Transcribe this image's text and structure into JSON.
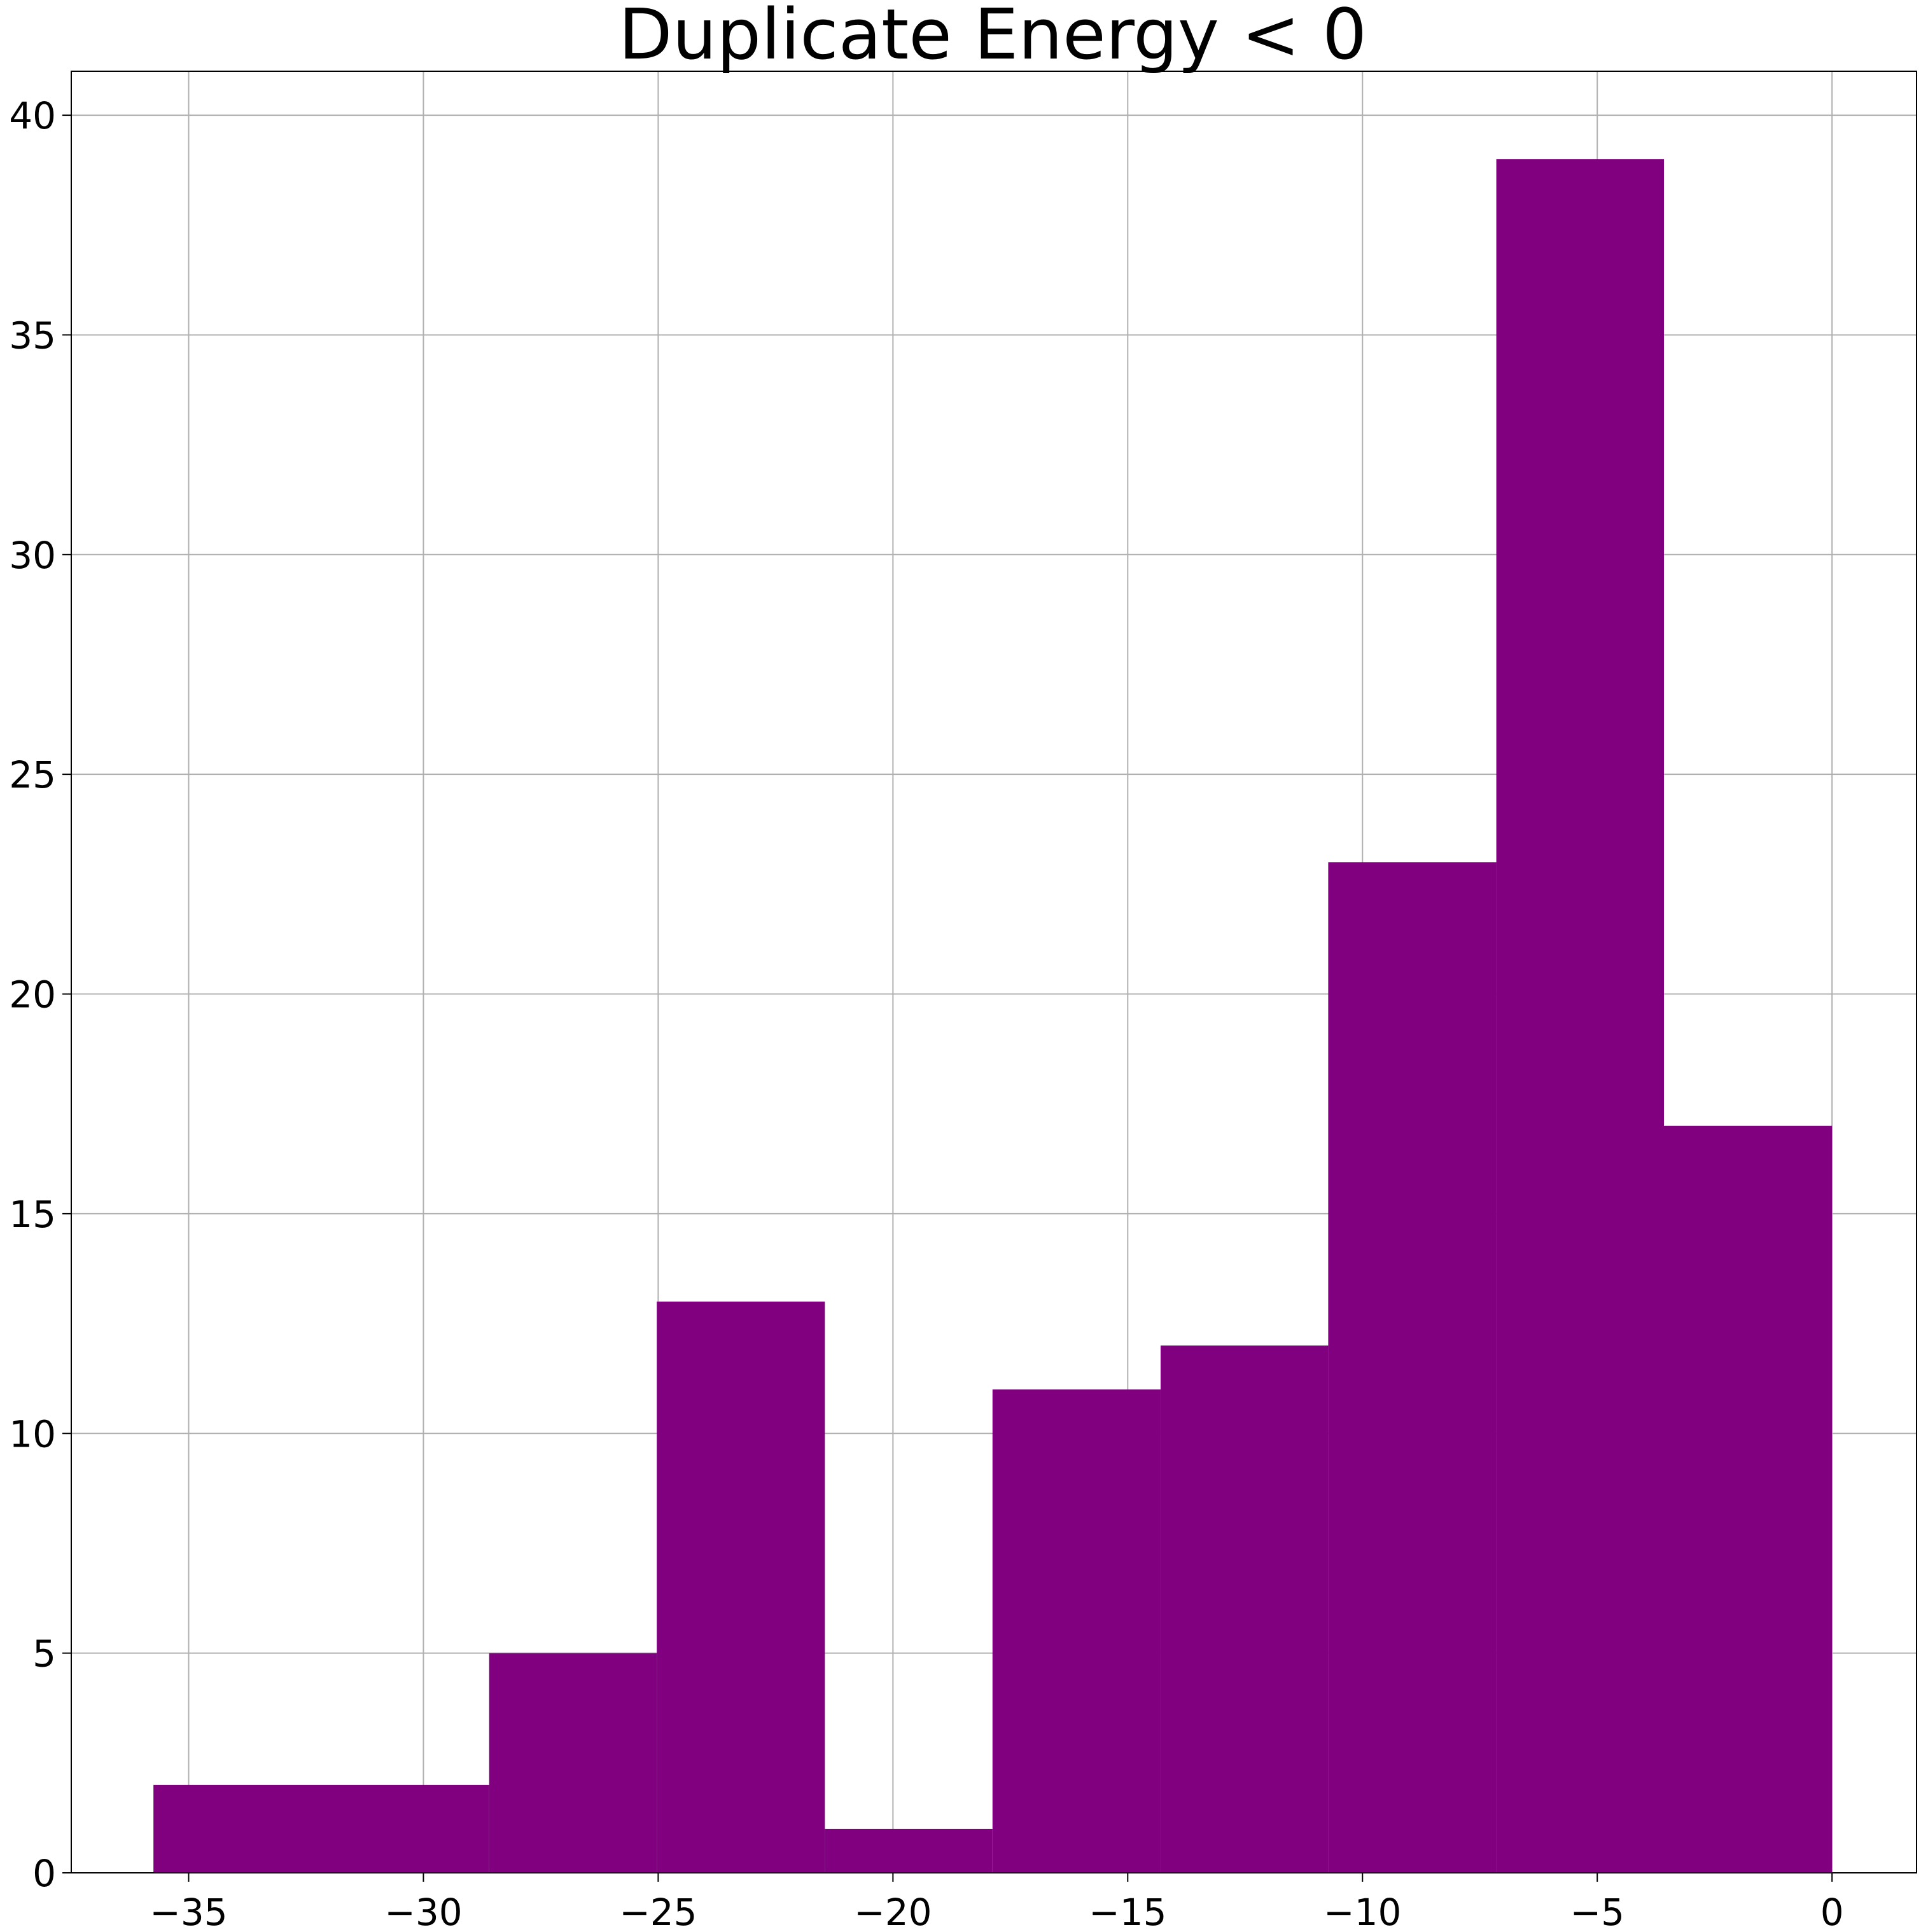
{
  "chart_data": {
    "type": "bar",
    "subtype": "histogram",
    "title": "Duplicate Energy < 0",
    "xlabel": "",
    "ylabel": "",
    "bar_color": "#800080",
    "grid": true,
    "xlim": [
      -37.5,
      1.8
    ],
    "ylim": [
      0,
      41
    ],
    "x_ticks": [
      -35,
      -30,
      -25,
      -20,
      -15,
      -10,
      -5,
      0
    ],
    "x_tick_labels": [
      "−35",
      "−30",
      "−25",
      "−20",
      "−15",
      "−10",
      "−5",
      "0"
    ],
    "y_ticks": [
      0,
      5,
      10,
      15,
      20,
      25,
      30,
      35,
      40
    ],
    "y_tick_labels": [
      "0",
      "5",
      "10",
      "15",
      "20",
      "25",
      "30",
      "35",
      "40"
    ],
    "bins": [
      {
        "start": -35.75,
        "end": -28.6,
        "count": 2
      },
      {
        "start": -28.6,
        "end": -25.03,
        "count": 5
      },
      {
        "start": -25.03,
        "end": -21.45,
        "count": 13
      },
      {
        "start": -21.45,
        "end": -17.88,
        "count": 1
      },
      {
        "start": -17.88,
        "end": -14.3,
        "count": 11
      },
      {
        "start": -14.3,
        "end": -10.73,
        "count": 12
      },
      {
        "start": -10.73,
        "end": -7.15,
        "count": 23
      },
      {
        "start": -7.15,
        "end": -3.58,
        "count": 39
      },
      {
        "start": -3.58,
        "end": 0.0,
        "count": 17
      }
    ]
  }
}
